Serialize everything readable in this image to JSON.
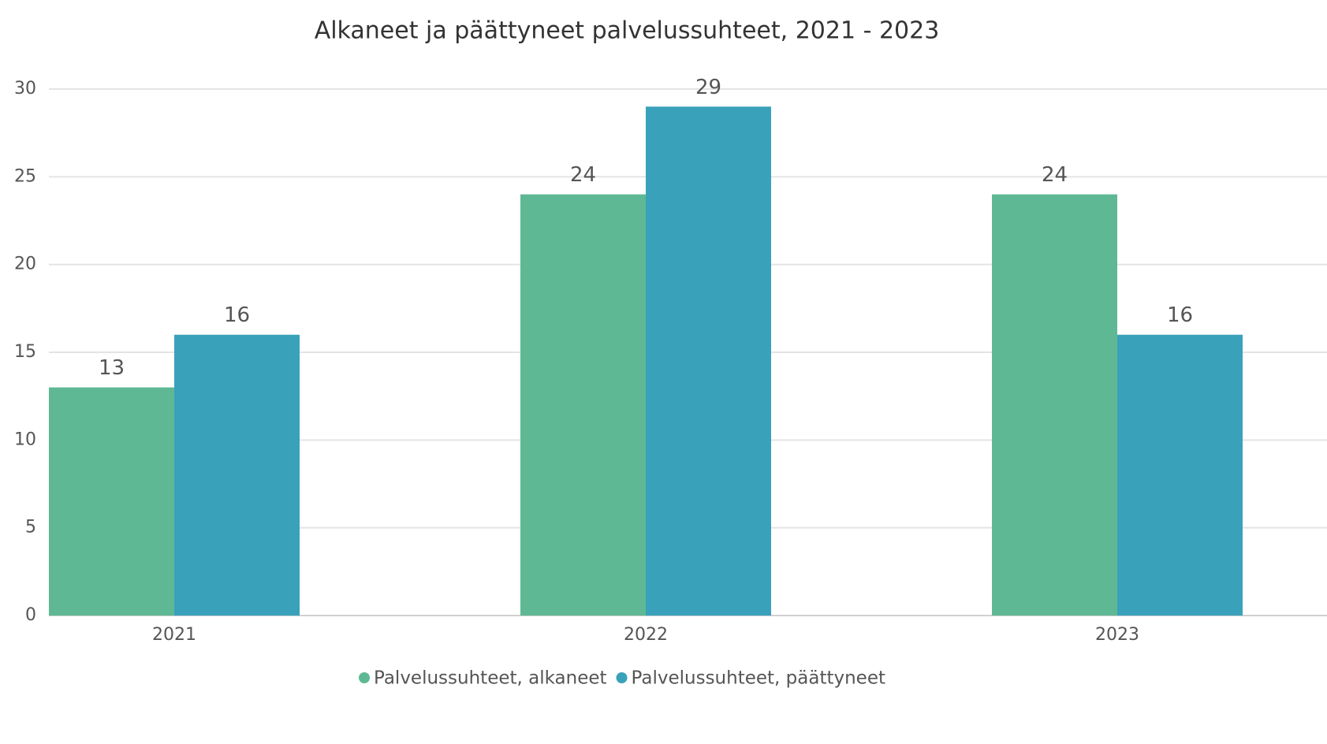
{
  "chart_data": {
    "type": "bar",
    "title": "Alkaneet ja päättyneet palvelussuhteet, 2021 - 2023",
    "categories": [
      "2021",
      "2022",
      "2023"
    ],
    "series": [
      {
        "name": "Palvelussuhteet, alkaneet",
        "color": "#5fb894",
        "values": [
          13,
          24,
          24
        ]
      },
      {
        "name": "Palvelussuhteet, päättyneet",
        "color": "#3aa1bb",
        "values": [
          16,
          29,
          16
        ]
      }
    ],
    "ylim": [
      0,
      30
    ],
    "yticks": [
      0,
      5,
      10,
      15,
      20,
      25,
      30
    ],
    "grid": true,
    "legend": "bottom"
  }
}
